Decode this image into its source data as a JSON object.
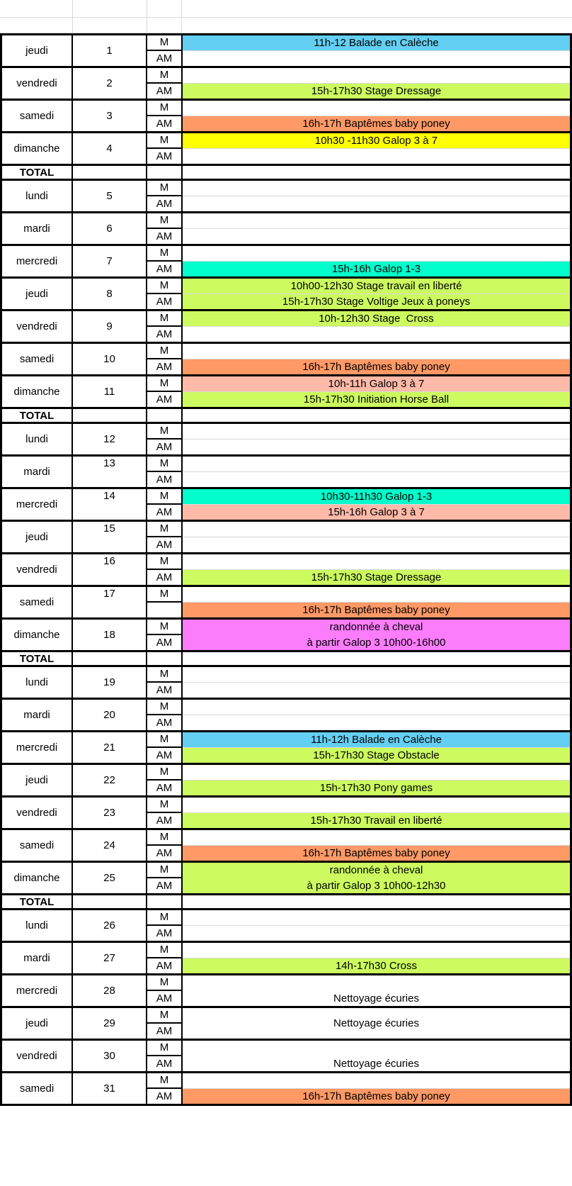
{
  "labels": {
    "morning": "M",
    "afternoon": "AM",
    "total": "TOTAL"
  },
  "palette": {
    "white": "#FFFFFF",
    "blue": "#63CFF2",
    "turquoise": "#00FFCC",
    "green": "#CCFA5F",
    "orange": "#FF9966",
    "yellow": "#FFFF00",
    "pink": "#FFB9A8",
    "magenta": "#FC7DFC",
    "border": "#000000",
    "gridline": "#D9D9D9"
  },
  "rows": [
    {
      "type": "day",
      "day": "jeudi",
      "num": "1",
      "num_align": "center",
      "m_label": "M",
      "am_label": "AM",
      "act": {
        "merged": false,
        "m": {
          "text": "11h-12 Balade en Calèche",
          "color": "blue"
        },
        "am": {
          "text": "",
          "color": "white"
        }
      }
    },
    {
      "type": "day",
      "day": "vendredi",
      "num": "2",
      "num_align": "center",
      "m_label": "M",
      "am_label": "AM",
      "act": {
        "merged": false,
        "m": {
          "text": "",
          "color": "white"
        },
        "am": {
          "text": "15h-17h30 Stage Dressage",
          "color": "green"
        }
      }
    },
    {
      "type": "day",
      "day": "samedi",
      "num": "3",
      "num_align": "center",
      "m_label": "M",
      "am_label": "AM",
      "act": {
        "merged": false,
        "m": {
          "text": "",
          "color": "white"
        },
        "am": {
          "text": "16h-17h Baptêmes baby poney",
          "color": "orange"
        }
      }
    },
    {
      "type": "day",
      "day": "dimanche",
      "num": "4",
      "num_align": "center",
      "m_label": "M",
      "am_label": "AM",
      "act": {
        "merged": false,
        "m": {
          "text": "10h30 -11h30 Galop 3 à 7",
          "color": "yellow"
        },
        "am": {
          "text": "",
          "color": "white"
        }
      }
    },
    {
      "type": "total",
      "label": "TOTAL"
    },
    {
      "type": "day",
      "day": "lundi",
      "num": "5",
      "num_align": "center",
      "m_label": "M",
      "am_label": "AM",
      "act": {
        "merged": false,
        "m": {
          "text": "",
          "color": "white"
        },
        "am": {
          "text": "",
          "color": "white"
        }
      }
    },
    {
      "type": "day",
      "day": "mardi",
      "num": "6",
      "num_align": "center",
      "m_label": "M",
      "am_label": "AM",
      "act": {
        "merged": false,
        "m": {
          "text": "",
          "color": "white"
        },
        "am": {
          "text": "",
          "color": "white"
        }
      }
    },
    {
      "type": "day",
      "day": "mercredi",
      "num": "7",
      "num_align": "center",
      "m_label": "M",
      "am_label": "AM",
      "act": {
        "merged": false,
        "m": {
          "text": "",
          "color": "white"
        },
        "am": {
          "text": "15h-16h Galop 1-3",
          "color": "turquoise"
        }
      }
    },
    {
      "type": "day",
      "day": "jeudi",
      "num": "8",
      "num_align": "center",
      "m_label": "M",
      "am_label": "AM",
      "act": {
        "merged": false,
        "m": {
          "text": "10h00-12h30 Stage travail en liberté",
          "color": "green"
        },
        "am": {
          "text": "15h-17h30 Stage Voltige Jeux à poneys",
          "color": "green"
        }
      }
    },
    {
      "type": "day",
      "day": "vendredi",
      "num": "9",
      "num_align": "center",
      "m_label": "M",
      "am_label": "AM",
      "act": {
        "merged": false,
        "m": {
          "text": "10h-12h30 Stage  Cross",
          "color": "green"
        },
        "am": {
          "text": "",
          "color": "white"
        }
      }
    },
    {
      "type": "day",
      "day": "samedi",
      "num": "10",
      "num_align": "center",
      "m_label": "M",
      "am_label": "AM",
      "act": {
        "merged": false,
        "m": {
          "text": "",
          "color": "white"
        },
        "am": {
          "text": "16h-17h Baptêmes baby poney",
          "color": "orange"
        }
      }
    },
    {
      "type": "day",
      "day": "dimanche",
      "num": "11",
      "num_align": "center",
      "m_label": "M",
      "am_label": "AM",
      "act": {
        "merged": false,
        "m": {
          "text": "10h-11h Galop 3 à 7",
          "color": "pink"
        },
        "am": {
          "text": "15h-17h30 Initiation Horse Ball",
          "color": "green"
        }
      }
    },
    {
      "type": "total",
      "label": "TOTAL"
    },
    {
      "type": "day",
      "day": "lundi",
      "num": "12",
      "num_align": "center",
      "m_label": "M",
      "am_label": "AM",
      "act": {
        "merged": false,
        "m": {
          "text": "",
          "color": "white"
        },
        "am": {
          "text": "",
          "color": "white"
        }
      }
    },
    {
      "type": "day",
      "day": "mardi",
      "num": "13",
      "num_align": "top",
      "m_label": "M",
      "am_label": "AM",
      "act": {
        "merged": false,
        "m": {
          "text": "",
          "color": "white"
        },
        "am": {
          "text": "",
          "color": "white"
        }
      }
    },
    {
      "type": "day",
      "day": "mercredi",
      "num": "14",
      "num_align": "top",
      "m_label": "M",
      "am_label": "AM",
      "act": {
        "merged": false,
        "m": {
          "text": "10h30-11h30 Galop 1-3",
          "color": "turquoise"
        },
        "am": {
          "text": "15h-16h Galop 3 à 7",
          "color": "pink"
        }
      }
    },
    {
      "type": "day",
      "day": "jeudi",
      "num": "15",
      "num_align": "top",
      "m_label": "M",
      "am_label": "AM",
      "act": {
        "merged": false,
        "m": {
          "text": "",
          "color": "white"
        },
        "am": {
          "text": "",
          "color": "white"
        }
      }
    },
    {
      "type": "day",
      "day": "vendredi",
      "num": "16",
      "num_align": "top",
      "m_label": "M",
      "am_label": "AM",
      "act": {
        "merged": false,
        "m": {
          "text": "",
          "color": "white"
        },
        "am": {
          "text": "15h-17h30 Stage Dressage",
          "color": "green"
        }
      }
    },
    {
      "type": "day",
      "day": "samedi",
      "num": "17",
      "num_align": "top",
      "m_label": "M",
      "am_label": "",
      "act": {
        "merged": false,
        "m": {
          "text": "",
          "color": "white"
        },
        "am": {
          "text": "16h-17h Baptêmes baby poney",
          "color": "orange"
        }
      }
    },
    {
      "type": "day",
      "day": "dimanche",
      "num": "18",
      "num_align": "center",
      "m_label": "M",
      "am_label": "AM",
      "act": {
        "merged": true,
        "color": "magenta",
        "valign": "center",
        "lines": [
          "randonnée à cheval",
          "à partir Galop 3 10h00-16h00"
        ]
      }
    },
    {
      "type": "total",
      "label": "TOTAL"
    },
    {
      "type": "day",
      "day": "lundi",
      "num": "19",
      "num_align": "center",
      "m_label": "M",
      "am_label": "AM",
      "act": {
        "merged": false,
        "m": {
          "text": "",
          "color": "white"
        },
        "am": {
          "text": "",
          "color": "white"
        }
      }
    },
    {
      "type": "day",
      "day": "mardi",
      "num": "20",
      "num_align": "center",
      "m_label": "M",
      "am_label": "AM",
      "act": {
        "merged": false,
        "m": {
          "text": "",
          "color": "white"
        },
        "am": {
          "text": "",
          "color": "white"
        }
      }
    },
    {
      "type": "day",
      "day": "mercredi",
      "num": "21",
      "num_align": "center",
      "m_label": "M",
      "am_label": "AM",
      "act": {
        "merged": false,
        "m": {
          "text": "11h-12h Balade en Calèche",
          "color": "blue"
        },
        "am": {
          "text": "15h-17h30 Stage Obstacle",
          "color": "green"
        }
      }
    },
    {
      "type": "day",
      "day": "jeudi",
      "num": "22",
      "num_align": "center",
      "m_label": "M",
      "am_label": "AM",
      "act": {
        "merged": false,
        "m": {
          "text": "",
          "color": "white"
        },
        "am": {
          "text": "15h-17h30 Pony games",
          "color": "green"
        }
      }
    },
    {
      "type": "day",
      "day": "vendredi",
      "num": "23",
      "num_align": "center",
      "m_label": "M",
      "am_label": "AM",
      "act": {
        "merged": false,
        "m": {
          "text": "",
          "color": "white"
        },
        "am": {
          "text": "15h-17h30 Travail en liberté",
          "color": "green"
        }
      }
    },
    {
      "type": "day",
      "day": "samedi",
      "num": "24",
      "num_align": "center",
      "m_label": "M",
      "am_label": "AM",
      "act": {
        "merged": false,
        "m": {
          "text": "",
          "color": "white"
        },
        "am": {
          "text": "16h-17h Baptêmes baby poney",
          "color": "orange"
        }
      }
    },
    {
      "type": "day",
      "day": "dimanche",
      "num": "25",
      "num_align": "center",
      "m_label": "M",
      "am_label": "AM",
      "act": {
        "merged": true,
        "color": "green",
        "valign": "center",
        "lines": [
          "randonnée à cheval",
          "à partir Galop 3 10h00-12h30"
        ]
      }
    },
    {
      "type": "total",
      "label": "TOTAL"
    },
    {
      "type": "day",
      "day": "lundi",
      "num": "26",
      "num_align": "center",
      "m_label": "M",
      "am_label": "AM",
      "act": {
        "merged": false,
        "m": {
          "text": "",
          "color": "white"
        },
        "am": {
          "text": "",
          "color": "white"
        }
      }
    },
    {
      "type": "day",
      "day": "mardi",
      "num": "27",
      "num_align": "center",
      "m_label": "M",
      "am_label": "AM",
      "act": {
        "merged": false,
        "m": {
          "text": "",
          "color": "white"
        },
        "am": {
          "text": "14h-17h30 Cross",
          "color": "green"
        }
      }
    },
    {
      "type": "day",
      "day": "mercredi",
      "num": "28",
      "num_align": "center",
      "m_label": "M",
      "am_label": "AM",
      "act": {
        "merged": true,
        "color": "white",
        "valign": "bottom",
        "lines": [
          "Nettoyage écuries"
        ]
      }
    },
    {
      "type": "day",
      "day": "jeudi",
      "num": "29",
      "num_align": "center",
      "m_label": "M",
      "am_label": "AM",
      "act": {
        "merged": true,
        "color": "white",
        "valign": "center",
        "lines": [
          "Nettoyage écuries"
        ]
      }
    },
    {
      "type": "day",
      "day": "vendredi",
      "num": "30",
      "num_align": "center",
      "m_label": "M",
      "am_label": "AM",
      "act": {
        "merged": true,
        "color": "white",
        "valign": "bottom",
        "lines": [
          "Nettoyage écuries"
        ]
      }
    },
    {
      "type": "day",
      "day": "samedi",
      "num": "31",
      "num_align": "center",
      "m_label": "M",
      "am_label": "AM",
      "act": {
        "merged": false,
        "m": {
          "text": "",
          "color": "white"
        },
        "am": {
          "text": "16h-17h Baptêmes baby poney",
          "color": "orange"
        }
      }
    }
  ]
}
